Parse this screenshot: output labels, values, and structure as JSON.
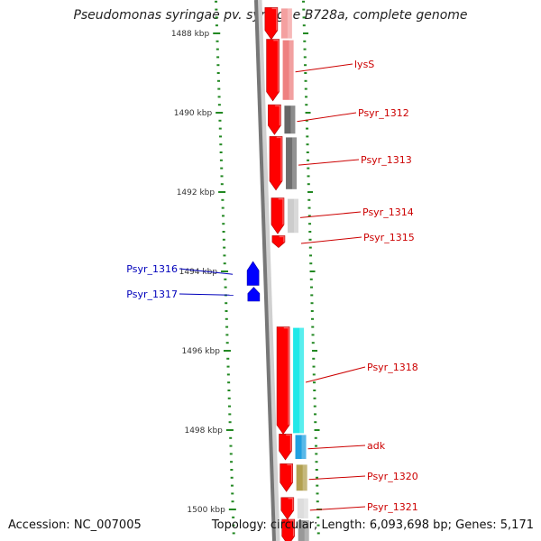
{
  "title": "Pseudomonas syringae pv. syringae B728a, complete genome",
  "footer": {
    "accession": "Accession: NC_007005",
    "summary": "Topology: circular; Length: 6,093,698 bp; Genes: 5,171"
  },
  "colors": {
    "tick": "#228822",
    "forward_gene": "#ff0000",
    "reverse_gene": "#0000ff",
    "forward_label": "#cc0000",
    "reverse_label": "#0000bb",
    "backbone": "#777777"
  },
  "kbp_ticks": [
    {
      "label": "1488 kbp",
      "position_kbp": 1488
    },
    {
      "label": "1490 kbp",
      "position_kbp": 1490
    },
    {
      "label": "1492 kbp",
      "position_kbp": 1492
    },
    {
      "label": "1494 kbp",
      "position_kbp": 1494
    },
    {
      "label": "1496 kbp",
      "position_kbp": 1496
    },
    {
      "label": "1498 kbp",
      "position_kbp": 1498
    },
    {
      "label": "1500 kbp",
      "position_kbp": 1500
    }
  ],
  "genes": [
    {
      "name": "",
      "strand": "+",
      "start_kbp": 1487.35,
      "end_kbp": 1488.15,
      "cog_color": "#f4a0a0"
    },
    {
      "name": "lysS",
      "strand": "+",
      "start_kbp": 1488.15,
      "end_kbp": 1489.7,
      "cog_color": "#ee8080"
    },
    {
      "name": "Psyr_1312",
      "strand": "+",
      "start_kbp": 1489.8,
      "end_kbp": 1490.55,
      "cog_color": "#666666"
    },
    {
      "name": "Psyr_1313",
      "strand": "+",
      "start_kbp": 1490.6,
      "end_kbp": 1491.95,
      "cog_color": "#6e6e6e"
    },
    {
      "name": "Psyr_1314",
      "strand": "+",
      "start_kbp": 1492.15,
      "end_kbp": 1493.05,
      "cog_color": "#cccccc"
    },
    {
      "name": "Psyr_1315",
      "strand": "+",
      "start_kbp": 1493.1,
      "end_kbp": 1493.4,
      "cog_color": ""
    },
    {
      "name": "Psyr_1316",
      "strand": "-",
      "start_kbp": 1493.75,
      "end_kbp": 1494.35,
      "cog_color": ""
    },
    {
      "name": "Psyr_1317",
      "strand": "-",
      "start_kbp": 1494.4,
      "end_kbp": 1494.75,
      "cog_color": ""
    },
    {
      "name": "Psyr_1318",
      "strand": "+",
      "start_kbp": 1495.4,
      "end_kbp": 1498.1,
      "cog_color": "#22e8e8"
    },
    {
      "name": "adk",
      "strand": "+",
      "start_kbp": 1498.1,
      "end_kbp": 1498.75,
      "cog_color": "#20a0e0"
    },
    {
      "name": "Psyr_1320",
      "strand": "+",
      "start_kbp": 1498.85,
      "end_kbp": 1499.55,
      "cog_color": "#b2a050"
    },
    {
      "name": "Psyr_1321",
      "strand": "+",
      "start_kbp": 1499.7,
      "end_kbp": 1500.25,
      "cog_color": "#dddddd"
    },
    {
      "name": "",
      "strand": "+",
      "start_kbp": 1500.25,
      "end_kbp": 1500.9,
      "cog_color": "#999999"
    }
  ]
}
